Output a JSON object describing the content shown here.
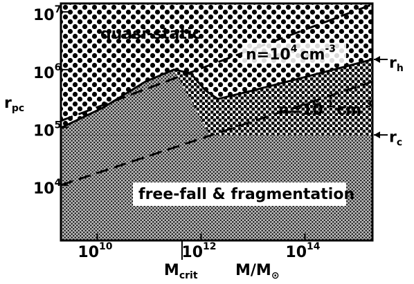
{
  "chart_data": {
    "type": "line",
    "xlog": true,
    "ylog": true,
    "xlim": [
      2000000000.0,
      2000000000000000.0
    ],
    "ylim": [
      1100.0,
      14000000.0
    ],
    "xticks": [
      {
        "value": 10000000000.0,
        "label": "10",
        "exponent": "10"
      },
      {
        "value": 1000000000000.0,
        "label": "10",
        "exponent": "12"
      },
      {
        "value": 100000000000000.0,
        "label": "10",
        "exponent": "14"
      }
    ],
    "yticks": [
      {
        "value": 10000.0,
        "label": "10",
        "exponent": "4"
      },
      {
        "value": 100000.0,
        "label": "10",
        "exponent": "5"
      },
      {
        "value": 1000000.0,
        "label": "10",
        "exponent": "6"
      },
      {
        "value": 10000000.0,
        "label": "10",
        "exponent": "7"
      }
    ],
    "xlabel": {
      "main": "M/M",
      "sub": "⊙"
    },
    "ylabel": {
      "main": "r",
      "sub": "pc"
    },
    "mcrit": {
      "value": 430000000000.0,
      "main": "M",
      "sub": "crit"
    },
    "regions": [
      "quasi-static",
      "free-fall & fragmentation"
    ],
    "series": [
      {
        "name": "r",
        "subscript": "h",
        "color": "#000000",
        "style": "solid",
        "x": [
          2000000000.0,
          13000000000.0,
          85000000000.0,
          300000000000.0,
          630000000000.0,
          1200000000000.0,
          2100000000000.0,
          8500000000000.0,
          130000000000000.0,
          2000000000000000.0
        ],
        "values": [
          98000.0,
          220000.0,
          620000.0,
          1000000.0,
          870000.0,
          440000.0,
          310000.0,
          420000.0,
          790000.0,
          1500000.0
        ]
      },
      {
        "name": "r",
        "subscript": "c",
        "color": "#000000",
        "style": "boundary",
        "x": [
          2000000000.0,
          2000000000000000.0
        ],
        "values": [
          74000.0,
          74000.0
        ]
      },
      {
        "name": "n=10",
        "exponent": "4",
        "unit": "cm",
        "unit_exponent": "-3",
        "color": "#000000",
        "style": "dashed",
        "x": [
          2000000000.0,
          2000000000000000.0
        ],
        "values": [
          130000.0,
          13500000.0
        ]
      },
      {
        "name": "n=10",
        "exponent": "-1",
        "unit": "cm",
        "unit_exponent": "-3",
        "color": "#000000",
        "style": "dashed",
        "x": [
          2000000000.0,
          2000000000000000.0
        ],
        "values": [
          10000.0,
          620000.0
        ]
      }
    ]
  }
}
